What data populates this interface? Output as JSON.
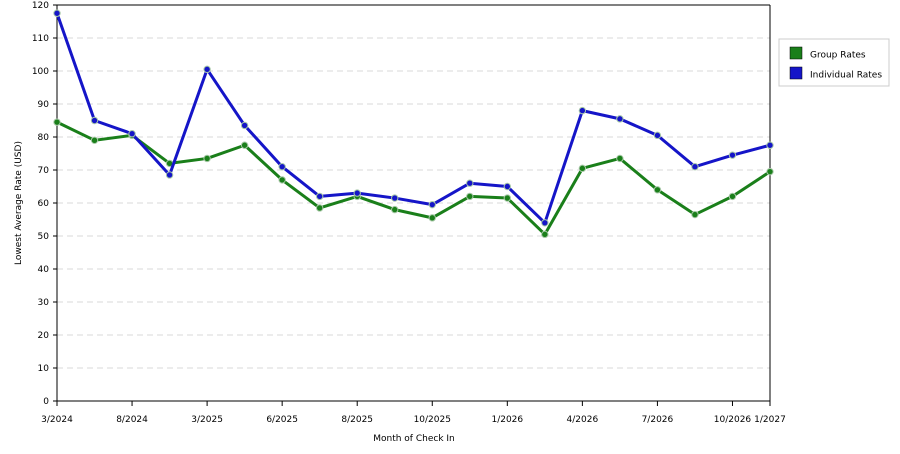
{
  "chart_data": {
    "type": "line",
    "xlabel": "Month of Check In",
    "ylabel": "Lowest Average Rate (USD)",
    "ylim": [
      0,
      120
    ],
    "yticks": [
      0,
      10,
      20,
      30,
      40,
      50,
      60,
      70,
      80,
      90,
      100,
      110,
      120
    ],
    "x_tick_labels": [
      {
        "index": 0,
        "label": "3/2024"
      },
      {
        "index": 2,
        "label": "8/2024"
      },
      {
        "index": 4,
        "label": "3/2025"
      },
      {
        "index": 6,
        "label": "6/2025"
      },
      {
        "index": 8,
        "label": "8/2025"
      },
      {
        "index": 10,
        "label": "10/2025"
      },
      {
        "index": 12,
        "label": "1/2026"
      },
      {
        "index": 14,
        "label": "4/2026"
      },
      {
        "index": 16,
        "label": "7/2026"
      },
      {
        "index": 18,
        "label": "10/2026"
      },
      {
        "index": 19,
        "label": "1/2027"
      }
    ],
    "grid": true,
    "legend_position": "right",
    "series": [
      {
        "name": "Group Rates",
        "color": "#1a7f1a",
        "values": [
          84.5,
          79,
          80.5,
          72,
          73.5,
          77.5,
          67,
          58.5,
          62,
          58,
          55.5,
          62,
          61.5,
          50.5,
          70.5,
          73.5,
          64,
          56.5,
          62,
          69.5
        ]
      },
      {
        "name": "Individual Rates",
        "color": "#1515c8",
        "values": [
          117.5,
          85,
          81,
          68.5,
          100.5,
          83.5,
          71,
          62,
          63,
          61.5,
          59.5,
          66,
          65,
          54,
          88,
          85.5,
          80.5,
          71,
          74.5,
          77.5
        ]
      }
    ]
  }
}
